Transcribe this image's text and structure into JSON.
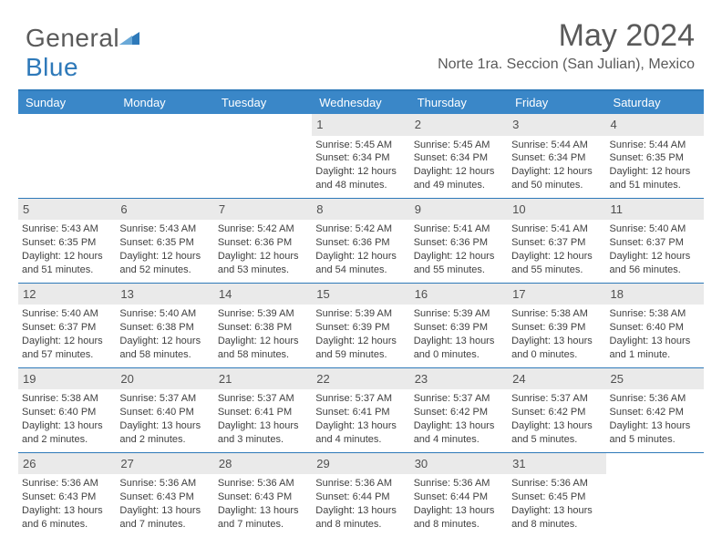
{
  "brand": {
    "part1": "General",
    "part2": "Blue"
  },
  "title": "May 2024",
  "subtitle": "Norte 1ra. Seccion (San Julian), Mexico",
  "colors": {
    "header_bg": "#3a87c8",
    "header_border": "#2e79b9",
    "daynum_bg": "#eaeaea",
    "text": "#404040",
    "title_color": "#5a5a5a"
  },
  "weekdays": [
    "Sunday",
    "Monday",
    "Tuesday",
    "Wednesday",
    "Thursday",
    "Friday",
    "Saturday"
  ],
  "weeks": [
    [
      null,
      null,
      null,
      {
        "n": "1",
        "sr": "Sunrise: 5:45 AM",
        "ss": "Sunset: 6:34 PM",
        "d1": "Daylight: 12 hours",
        "d2": "and 48 minutes."
      },
      {
        "n": "2",
        "sr": "Sunrise: 5:45 AM",
        "ss": "Sunset: 6:34 PM",
        "d1": "Daylight: 12 hours",
        "d2": "and 49 minutes."
      },
      {
        "n": "3",
        "sr": "Sunrise: 5:44 AM",
        "ss": "Sunset: 6:34 PM",
        "d1": "Daylight: 12 hours",
        "d2": "and 50 minutes."
      },
      {
        "n": "4",
        "sr": "Sunrise: 5:44 AM",
        "ss": "Sunset: 6:35 PM",
        "d1": "Daylight: 12 hours",
        "d2": "and 51 minutes."
      }
    ],
    [
      {
        "n": "5",
        "sr": "Sunrise: 5:43 AM",
        "ss": "Sunset: 6:35 PM",
        "d1": "Daylight: 12 hours",
        "d2": "and 51 minutes."
      },
      {
        "n": "6",
        "sr": "Sunrise: 5:43 AM",
        "ss": "Sunset: 6:35 PM",
        "d1": "Daylight: 12 hours",
        "d2": "and 52 minutes."
      },
      {
        "n": "7",
        "sr": "Sunrise: 5:42 AM",
        "ss": "Sunset: 6:36 PM",
        "d1": "Daylight: 12 hours",
        "d2": "and 53 minutes."
      },
      {
        "n": "8",
        "sr": "Sunrise: 5:42 AM",
        "ss": "Sunset: 6:36 PM",
        "d1": "Daylight: 12 hours",
        "d2": "and 54 minutes."
      },
      {
        "n": "9",
        "sr": "Sunrise: 5:41 AM",
        "ss": "Sunset: 6:36 PM",
        "d1": "Daylight: 12 hours",
        "d2": "and 55 minutes."
      },
      {
        "n": "10",
        "sr": "Sunrise: 5:41 AM",
        "ss": "Sunset: 6:37 PM",
        "d1": "Daylight: 12 hours",
        "d2": "and 55 minutes."
      },
      {
        "n": "11",
        "sr": "Sunrise: 5:40 AM",
        "ss": "Sunset: 6:37 PM",
        "d1": "Daylight: 12 hours",
        "d2": "and 56 minutes."
      }
    ],
    [
      {
        "n": "12",
        "sr": "Sunrise: 5:40 AM",
        "ss": "Sunset: 6:37 PM",
        "d1": "Daylight: 12 hours",
        "d2": "and 57 minutes."
      },
      {
        "n": "13",
        "sr": "Sunrise: 5:40 AM",
        "ss": "Sunset: 6:38 PM",
        "d1": "Daylight: 12 hours",
        "d2": "and 58 minutes."
      },
      {
        "n": "14",
        "sr": "Sunrise: 5:39 AM",
        "ss": "Sunset: 6:38 PM",
        "d1": "Daylight: 12 hours",
        "d2": "and 58 minutes."
      },
      {
        "n": "15",
        "sr": "Sunrise: 5:39 AM",
        "ss": "Sunset: 6:39 PM",
        "d1": "Daylight: 12 hours",
        "d2": "and 59 minutes."
      },
      {
        "n": "16",
        "sr": "Sunrise: 5:39 AM",
        "ss": "Sunset: 6:39 PM",
        "d1": "Daylight: 13 hours",
        "d2": "and 0 minutes."
      },
      {
        "n": "17",
        "sr": "Sunrise: 5:38 AM",
        "ss": "Sunset: 6:39 PM",
        "d1": "Daylight: 13 hours",
        "d2": "and 0 minutes."
      },
      {
        "n": "18",
        "sr": "Sunrise: 5:38 AM",
        "ss": "Sunset: 6:40 PM",
        "d1": "Daylight: 13 hours",
        "d2": "and 1 minute."
      }
    ],
    [
      {
        "n": "19",
        "sr": "Sunrise: 5:38 AM",
        "ss": "Sunset: 6:40 PM",
        "d1": "Daylight: 13 hours",
        "d2": "and 2 minutes."
      },
      {
        "n": "20",
        "sr": "Sunrise: 5:37 AM",
        "ss": "Sunset: 6:40 PM",
        "d1": "Daylight: 13 hours",
        "d2": "and 2 minutes."
      },
      {
        "n": "21",
        "sr": "Sunrise: 5:37 AM",
        "ss": "Sunset: 6:41 PM",
        "d1": "Daylight: 13 hours",
        "d2": "and 3 minutes."
      },
      {
        "n": "22",
        "sr": "Sunrise: 5:37 AM",
        "ss": "Sunset: 6:41 PM",
        "d1": "Daylight: 13 hours",
        "d2": "and 4 minutes."
      },
      {
        "n": "23",
        "sr": "Sunrise: 5:37 AM",
        "ss": "Sunset: 6:42 PM",
        "d1": "Daylight: 13 hours",
        "d2": "and 4 minutes."
      },
      {
        "n": "24",
        "sr": "Sunrise: 5:37 AM",
        "ss": "Sunset: 6:42 PM",
        "d1": "Daylight: 13 hours",
        "d2": "and 5 minutes."
      },
      {
        "n": "25",
        "sr": "Sunrise: 5:36 AM",
        "ss": "Sunset: 6:42 PM",
        "d1": "Daylight: 13 hours",
        "d2": "and 5 minutes."
      }
    ],
    [
      {
        "n": "26",
        "sr": "Sunrise: 5:36 AM",
        "ss": "Sunset: 6:43 PM",
        "d1": "Daylight: 13 hours",
        "d2": "and 6 minutes."
      },
      {
        "n": "27",
        "sr": "Sunrise: 5:36 AM",
        "ss": "Sunset: 6:43 PM",
        "d1": "Daylight: 13 hours",
        "d2": "and 7 minutes."
      },
      {
        "n": "28",
        "sr": "Sunrise: 5:36 AM",
        "ss": "Sunset: 6:43 PM",
        "d1": "Daylight: 13 hours",
        "d2": "and 7 minutes."
      },
      {
        "n": "29",
        "sr": "Sunrise: 5:36 AM",
        "ss": "Sunset: 6:44 PM",
        "d1": "Daylight: 13 hours",
        "d2": "and 8 minutes."
      },
      {
        "n": "30",
        "sr": "Sunrise: 5:36 AM",
        "ss": "Sunset: 6:44 PM",
        "d1": "Daylight: 13 hours",
        "d2": "and 8 minutes."
      },
      {
        "n": "31",
        "sr": "Sunrise: 5:36 AM",
        "ss": "Sunset: 6:45 PM",
        "d1": "Daylight: 13 hours",
        "d2": "and 8 minutes."
      },
      null
    ]
  ]
}
